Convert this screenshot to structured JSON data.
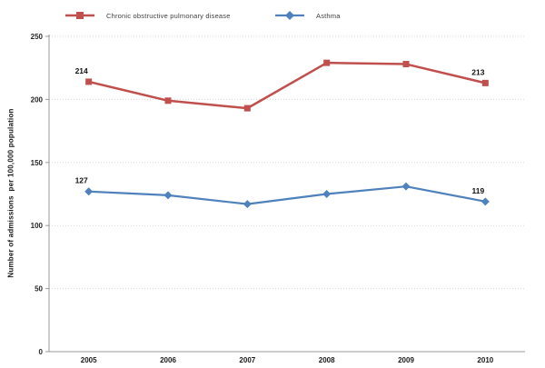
{
  "chart_data": {
    "type": "line",
    "title": "",
    "xlabel": "",
    "ylabel": "Number of admissions  per 100,000 population",
    "categories": [
      "2005",
      "2006",
      "2007",
      "2008",
      "2009",
      "2010"
    ],
    "series": [
      {
        "name": "Chronic obstructive pulmonary disease",
        "color": "#c0504d",
        "marker": "square",
        "values": [
          214,
          199,
          193,
          229,
          228,
          213
        ],
        "data_labels": {
          "2005": "214",
          "2010": "213"
        }
      },
      {
        "name": "Asthma",
        "color": "#4f81bd",
        "marker": "diamond",
        "values": [
          127,
          124,
          117,
          125,
          131,
          119
        ],
        "data_labels": {
          "2005": "127",
          "2010": "119"
        }
      }
    ],
    "ylim": [
      0,
      250
    ],
    "yticks": [
      0,
      50,
      100,
      150,
      200,
      250
    ],
    "grid": true,
    "gridline_color": "#d9d9d9",
    "axis_color": "#9a9a9a",
    "legend_position": "top"
  }
}
